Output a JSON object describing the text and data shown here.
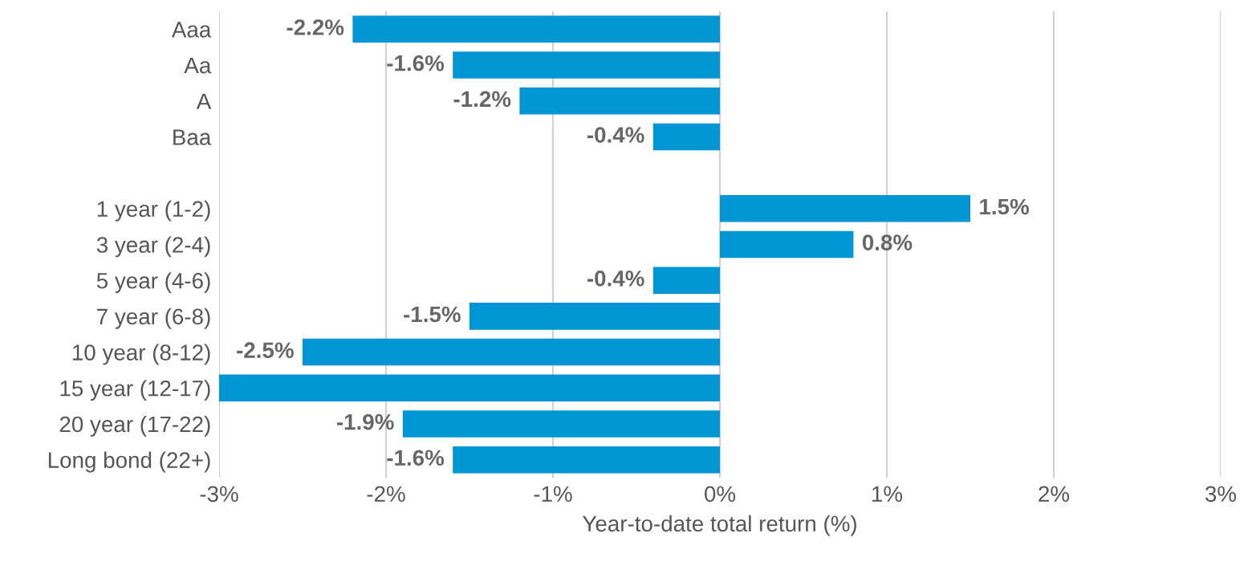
{
  "chart_data": {
    "type": "bar",
    "orientation": "horizontal",
    "xlabel": "Year-to-date total return (%)",
    "categories": [
      "Aaa",
      "Aa",
      "A",
      "Baa",
      null,
      "1 year (1-2)",
      "3 year (2-4)",
      "5 year (4-6)",
      "7 year (6-8)",
      "10 year (8-12)",
      "15 year (12-17)",
      "20 year (17-22)",
      "Long bond (22+)"
    ],
    "values": [
      -2.2,
      -1.6,
      -1.2,
      -0.4,
      null,
      1.5,
      0.8,
      -0.4,
      -1.5,
      -2.5,
      -3.0,
      -1.9,
      -1.6
    ],
    "value_labels": [
      "-2.2%",
      "-1.6%",
      "-1.2%",
      "-0.4%",
      null,
      "1.5%",
      "0.8%",
      "-0.4%",
      "-1.5%",
      "-2.5%",
      null,
      "-1.9%",
      "-1.6%"
    ],
    "color": "#0096d6",
    "xlim": [
      -3,
      3
    ],
    "xticks": [
      {
        "value": -3,
        "label": "-3%"
      },
      {
        "value": -2,
        "label": "-2%"
      },
      {
        "value": -1,
        "label": "-1%"
      },
      {
        "value": 0,
        "label": "0%"
      },
      {
        "value": 1,
        "label": "1%"
      },
      {
        "value": 2,
        "label": "2%"
      },
      {
        "value": 3,
        "label": "3%"
      }
    ],
    "grid": "x",
    "legend": false
  }
}
